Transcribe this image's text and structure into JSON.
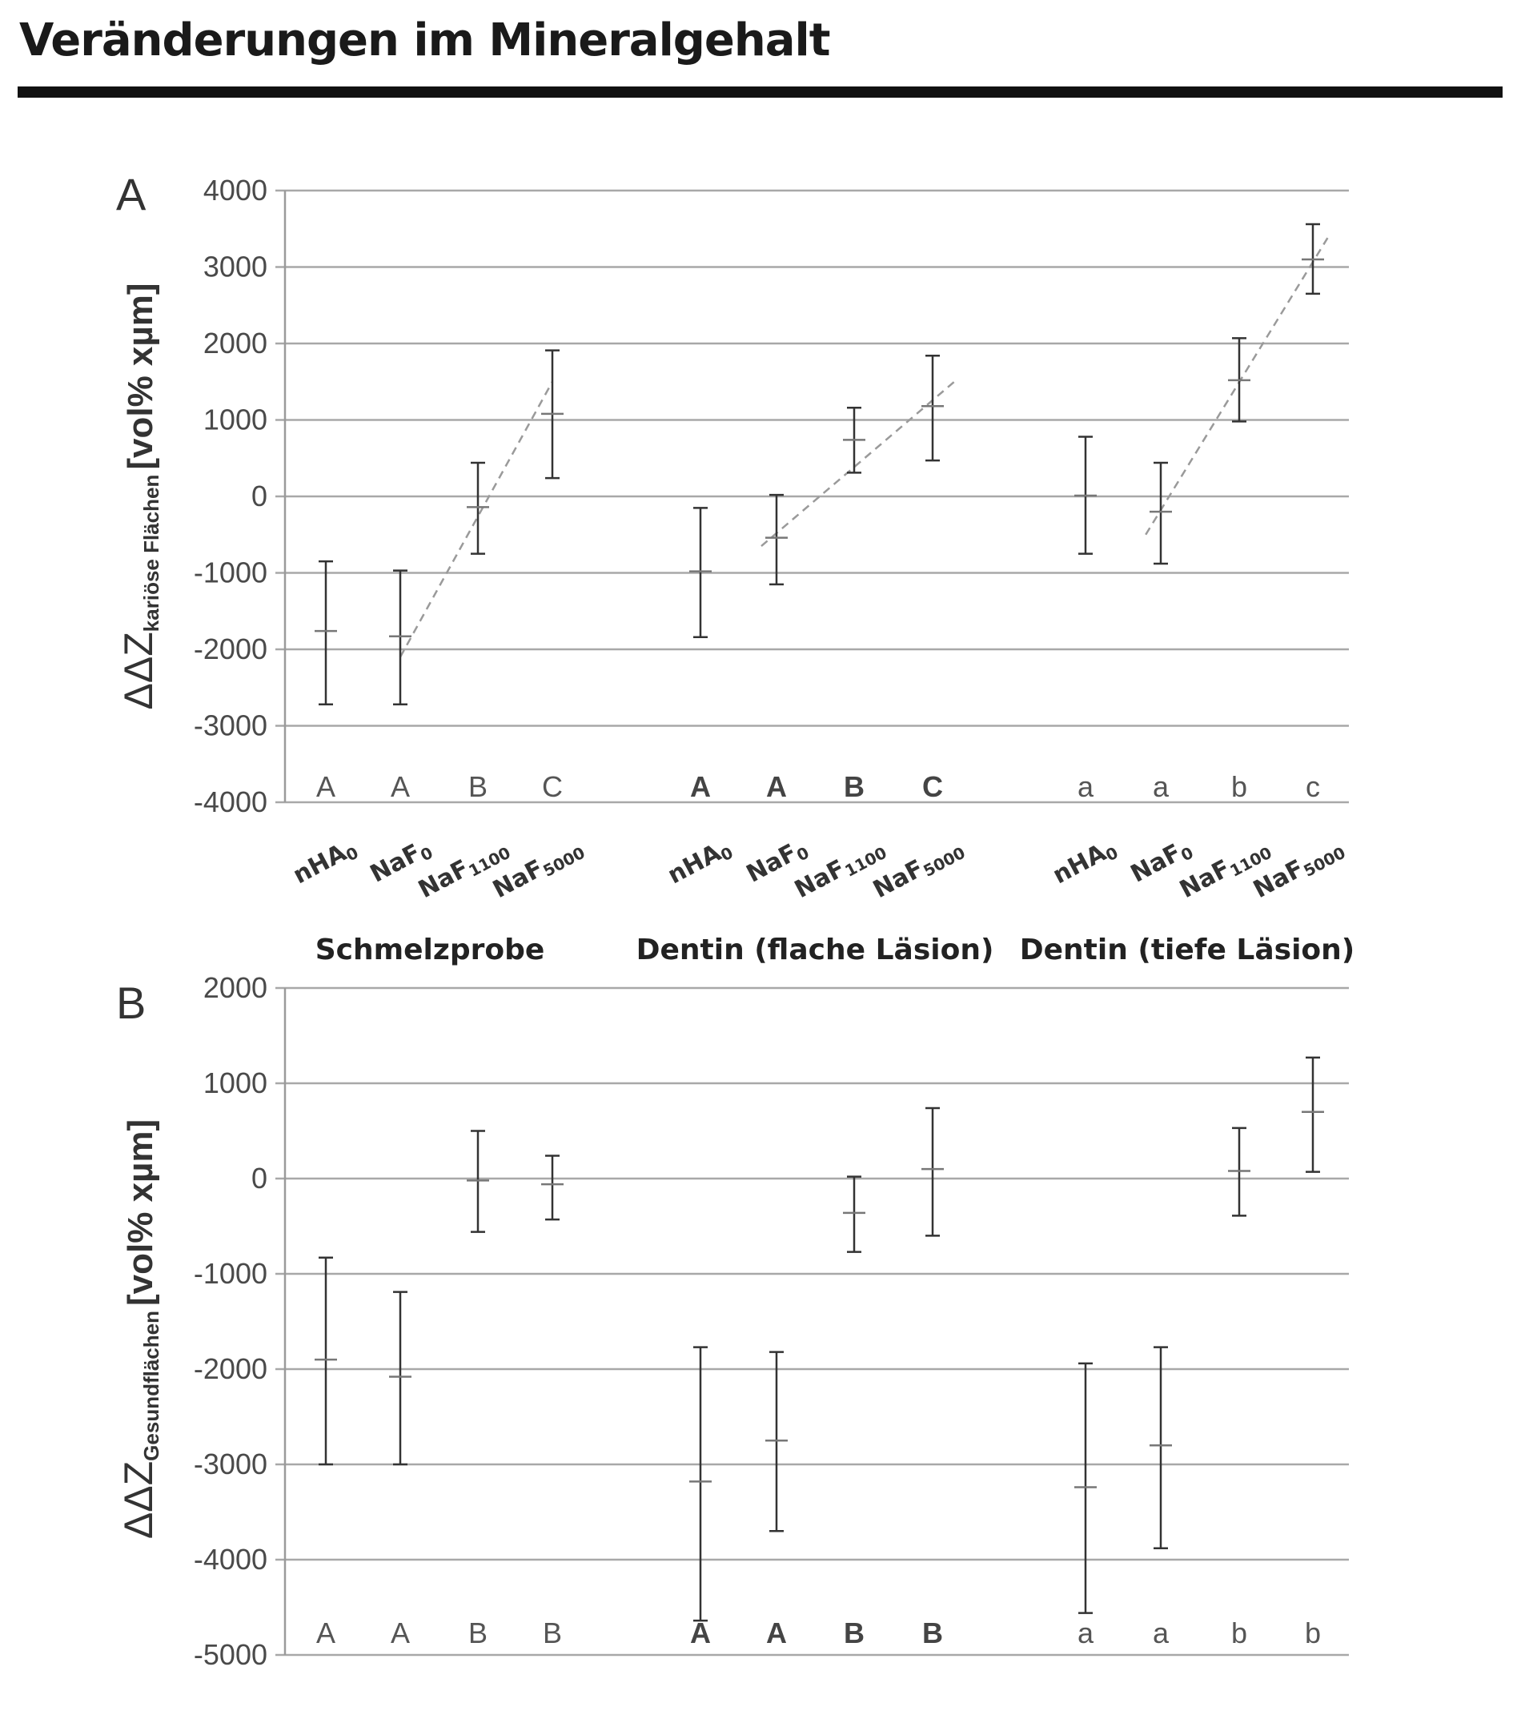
{
  "page": {
    "title": "Veränderungen im Mineralgehalt"
  },
  "groups": [
    "Schmelzprobe",
    "Dentin (flache Läsion)",
    "Dentin (tiefe Läsion)"
  ],
  "categories": [
    {
      "base": "nHA",
      "sub": "0"
    },
    {
      "base": "NaF",
      "sub": "0"
    },
    {
      "base": "NaF",
      "sub": "1100"
    },
    {
      "base": "NaF",
      "sub": "5000"
    }
  ],
  "chart_data": [
    {
      "type": "scatter",
      "panel": "A",
      "ylabel": {
        "main": "ΔΔZ",
        "sub": "kariöse Flächen",
        "unit": "[vol% xµm]"
      },
      "ylim": [
        -4000,
        4000
      ],
      "yticks": [
        4000,
        3000,
        2000,
        1000,
        0,
        -1000,
        -2000,
        -3000,
        -4000
      ],
      "grid": true,
      "series": [
        {
          "group": "Schmelzprobe",
          "means": [
            -1760,
            -1830,
            -140,
            1080
          ],
          "lower": [
            -2720,
            -2720,
            -750,
            240
          ],
          "upper": [
            -850,
            -970,
            440,
            1910
          ],
          "letters": [
            "A",
            "A",
            "B",
            "C"
          ],
          "letters_bold": false,
          "trend": {
            "from": [
              2,
              -2100
            ],
            "to": [
              4,
              1500
            ]
          }
        },
        {
          "group": "Dentin (flache Läsion)",
          "means": [
            -980,
            -540,
            740,
            1180
          ],
          "lower": [
            -1840,
            -1150,
            310,
            470
          ],
          "upper": [
            -150,
            20,
            1160,
            1840
          ],
          "letters": [
            "A",
            "A",
            "B",
            "C"
          ],
          "letters_bold": true,
          "trend": {
            "from": [
              1.8,
              -650
            ],
            "to": [
              4.3,
              1520
            ]
          }
        },
        {
          "group": "Dentin (tiefe Läsion)",
          "means": [
            10,
            -200,
            1520,
            3100
          ],
          "lower": [
            -750,
            -880,
            980,
            2650
          ],
          "upper": [
            780,
            440,
            2070,
            3560
          ],
          "letters": [
            "a",
            "a",
            "b",
            "c"
          ],
          "letters_bold": false,
          "trend": {
            "from": [
              1.8,
              -500
            ],
            "to": [
              4.2,
              3380
            ]
          }
        }
      ]
    },
    {
      "type": "scatter",
      "panel": "B",
      "ylabel": {
        "main": "ΔΔZ",
        "sub": "Gesundflächen",
        "unit": "[vol% xµm]"
      },
      "ylim": [
        -5000,
        2000
      ],
      "yticks": [
        2000,
        1000,
        0,
        -1000,
        -2000,
        -3000,
        -4000,
        -5000
      ],
      "grid": true,
      "series": [
        {
          "group": "Schmelzprobe",
          "means": [
            -1900,
            -2080,
            -20,
            -60
          ],
          "lower": [
            -3000,
            -3000,
            -560,
            -430
          ],
          "upper": [
            -830,
            -1190,
            500,
            240
          ],
          "letters": [
            "A",
            "A",
            "B",
            "B"
          ],
          "letters_bold": false
        },
        {
          "group": "Dentin (flache Läsion)",
          "means": [
            -3180,
            -2750,
            -360,
            100
          ],
          "lower": [
            -4640,
            -3700,
            -770,
            -600
          ],
          "upper": [
            -1770,
            -1820,
            20,
            740
          ],
          "letters": [
            "A",
            "A",
            "B",
            "B"
          ],
          "letters_bold": true
        },
        {
          "group": "Dentin (tiefe Läsion)",
          "means": [
            -3240,
            -2800,
            80,
            700
          ],
          "lower": [
            -4560,
            -3880,
            -390,
            70
          ],
          "upper": [
            -1940,
            -1770,
            530,
            1270
          ],
          "letters": [
            "a",
            "a",
            "b",
            "b"
          ],
          "letters_bold": false
        }
      ]
    }
  ]
}
